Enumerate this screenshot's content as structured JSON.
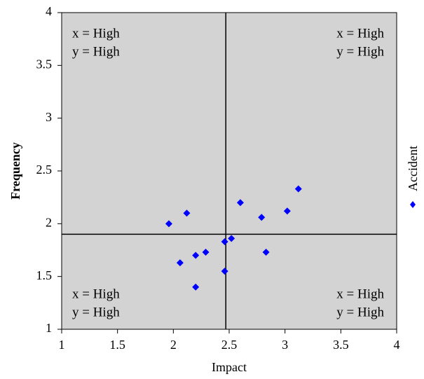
{
  "chart_data": {
    "type": "scatter",
    "xlabel": "Impact",
    "ylabel": "Frequency",
    "xlim": [
      1,
      4
    ],
    "ylim": [
      1,
      4
    ],
    "x_ticks": [
      "1",
      "1.5",
      "2",
      "2.5",
      "3",
      "3.5",
      "4"
    ],
    "y_ticks": [
      "1",
      "1.5",
      "2",
      "2.5",
      "3",
      "3.5",
      "4"
    ],
    "grid": false,
    "legend_position": "right",
    "plot_background": "#d3d3d3",
    "quadrant_lines": {
      "x": 2.47,
      "y": 1.9
    },
    "quadrant_labels": {
      "top_left": [
        "x = High",
        "y = High"
      ],
      "top_right": [
        "x = High",
        "y = High"
      ],
      "bottom_left": [
        "x = High",
        "y = High"
      ],
      "bottom_right": [
        "x = High",
        "y = High"
      ]
    },
    "series": [
      {
        "name": "Accident",
        "color": "#0000ff",
        "marker": "diamond",
        "points": [
          {
            "x": 1.96,
            "y": 2.0
          },
          {
            "x": 2.12,
            "y": 2.1
          },
          {
            "x": 2.06,
            "y": 1.63
          },
          {
            "x": 2.2,
            "y": 1.7
          },
          {
            "x": 2.2,
            "y": 1.4
          },
          {
            "x": 2.29,
            "y": 1.73
          },
          {
            "x": 2.46,
            "y": 1.83
          },
          {
            "x": 2.46,
            "y": 1.55
          },
          {
            "x": 2.52,
            "y": 1.86
          },
          {
            "x": 2.6,
            "y": 2.2
          },
          {
            "x": 2.79,
            "y": 2.06
          },
          {
            "x": 2.83,
            "y": 1.73
          },
          {
            "x": 3.02,
            "y": 2.12
          },
          {
            "x": 3.12,
            "y": 2.33
          }
        ]
      }
    ]
  }
}
